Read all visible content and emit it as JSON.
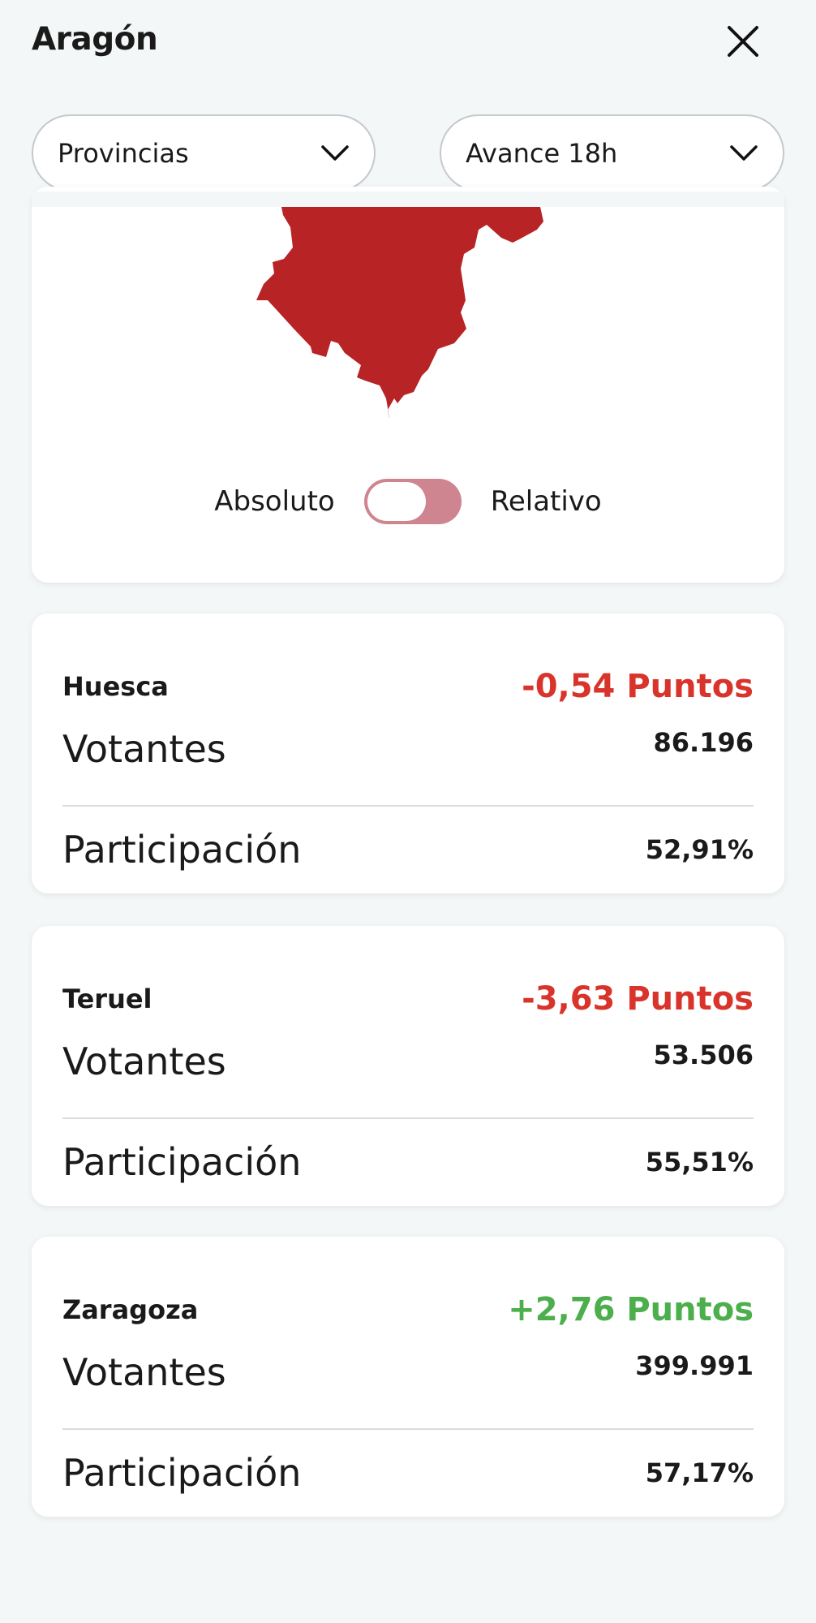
{
  "header": {
    "title": "Aragón",
    "close_icon": "close-icon"
  },
  "filters": [
    {
      "value": "Provincias"
    },
    {
      "value": "Avance 18h"
    }
  ],
  "map": {
    "fill_color": "#b82325"
  },
  "toggle": {
    "left_label": "Absoluto",
    "right_label": "Relativo",
    "state": "Absoluto"
  },
  "colors": {
    "negative": "#d9342b",
    "positive": "#4cae4c"
  },
  "provinces": [
    {
      "name": "Huesca",
      "delta": "-0,54 Puntos",
      "trend": "negative",
      "votantes_label": "Votantes",
      "votantes": "86.196",
      "participacion_label": "Participación",
      "participacion": "52,91%"
    },
    {
      "name": "Teruel",
      "delta": "-3,63 Puntos",
      "trend": "negative",
      "votantes_label": "Votantes",
      "votantes": "53.506",
      "participacion_label": "Participación",
      "participacion": "55,51%"
    },
    {
      "name": "Zaragoza",
      "delta": "+2,76 Puntos",
      "trend": "positive",
      "votantes_label": "Votantes",
      "votantes": "399.991",
      "participacion_label": "Participación",
      "participacion": "57,17%"
    }
  ]
}
